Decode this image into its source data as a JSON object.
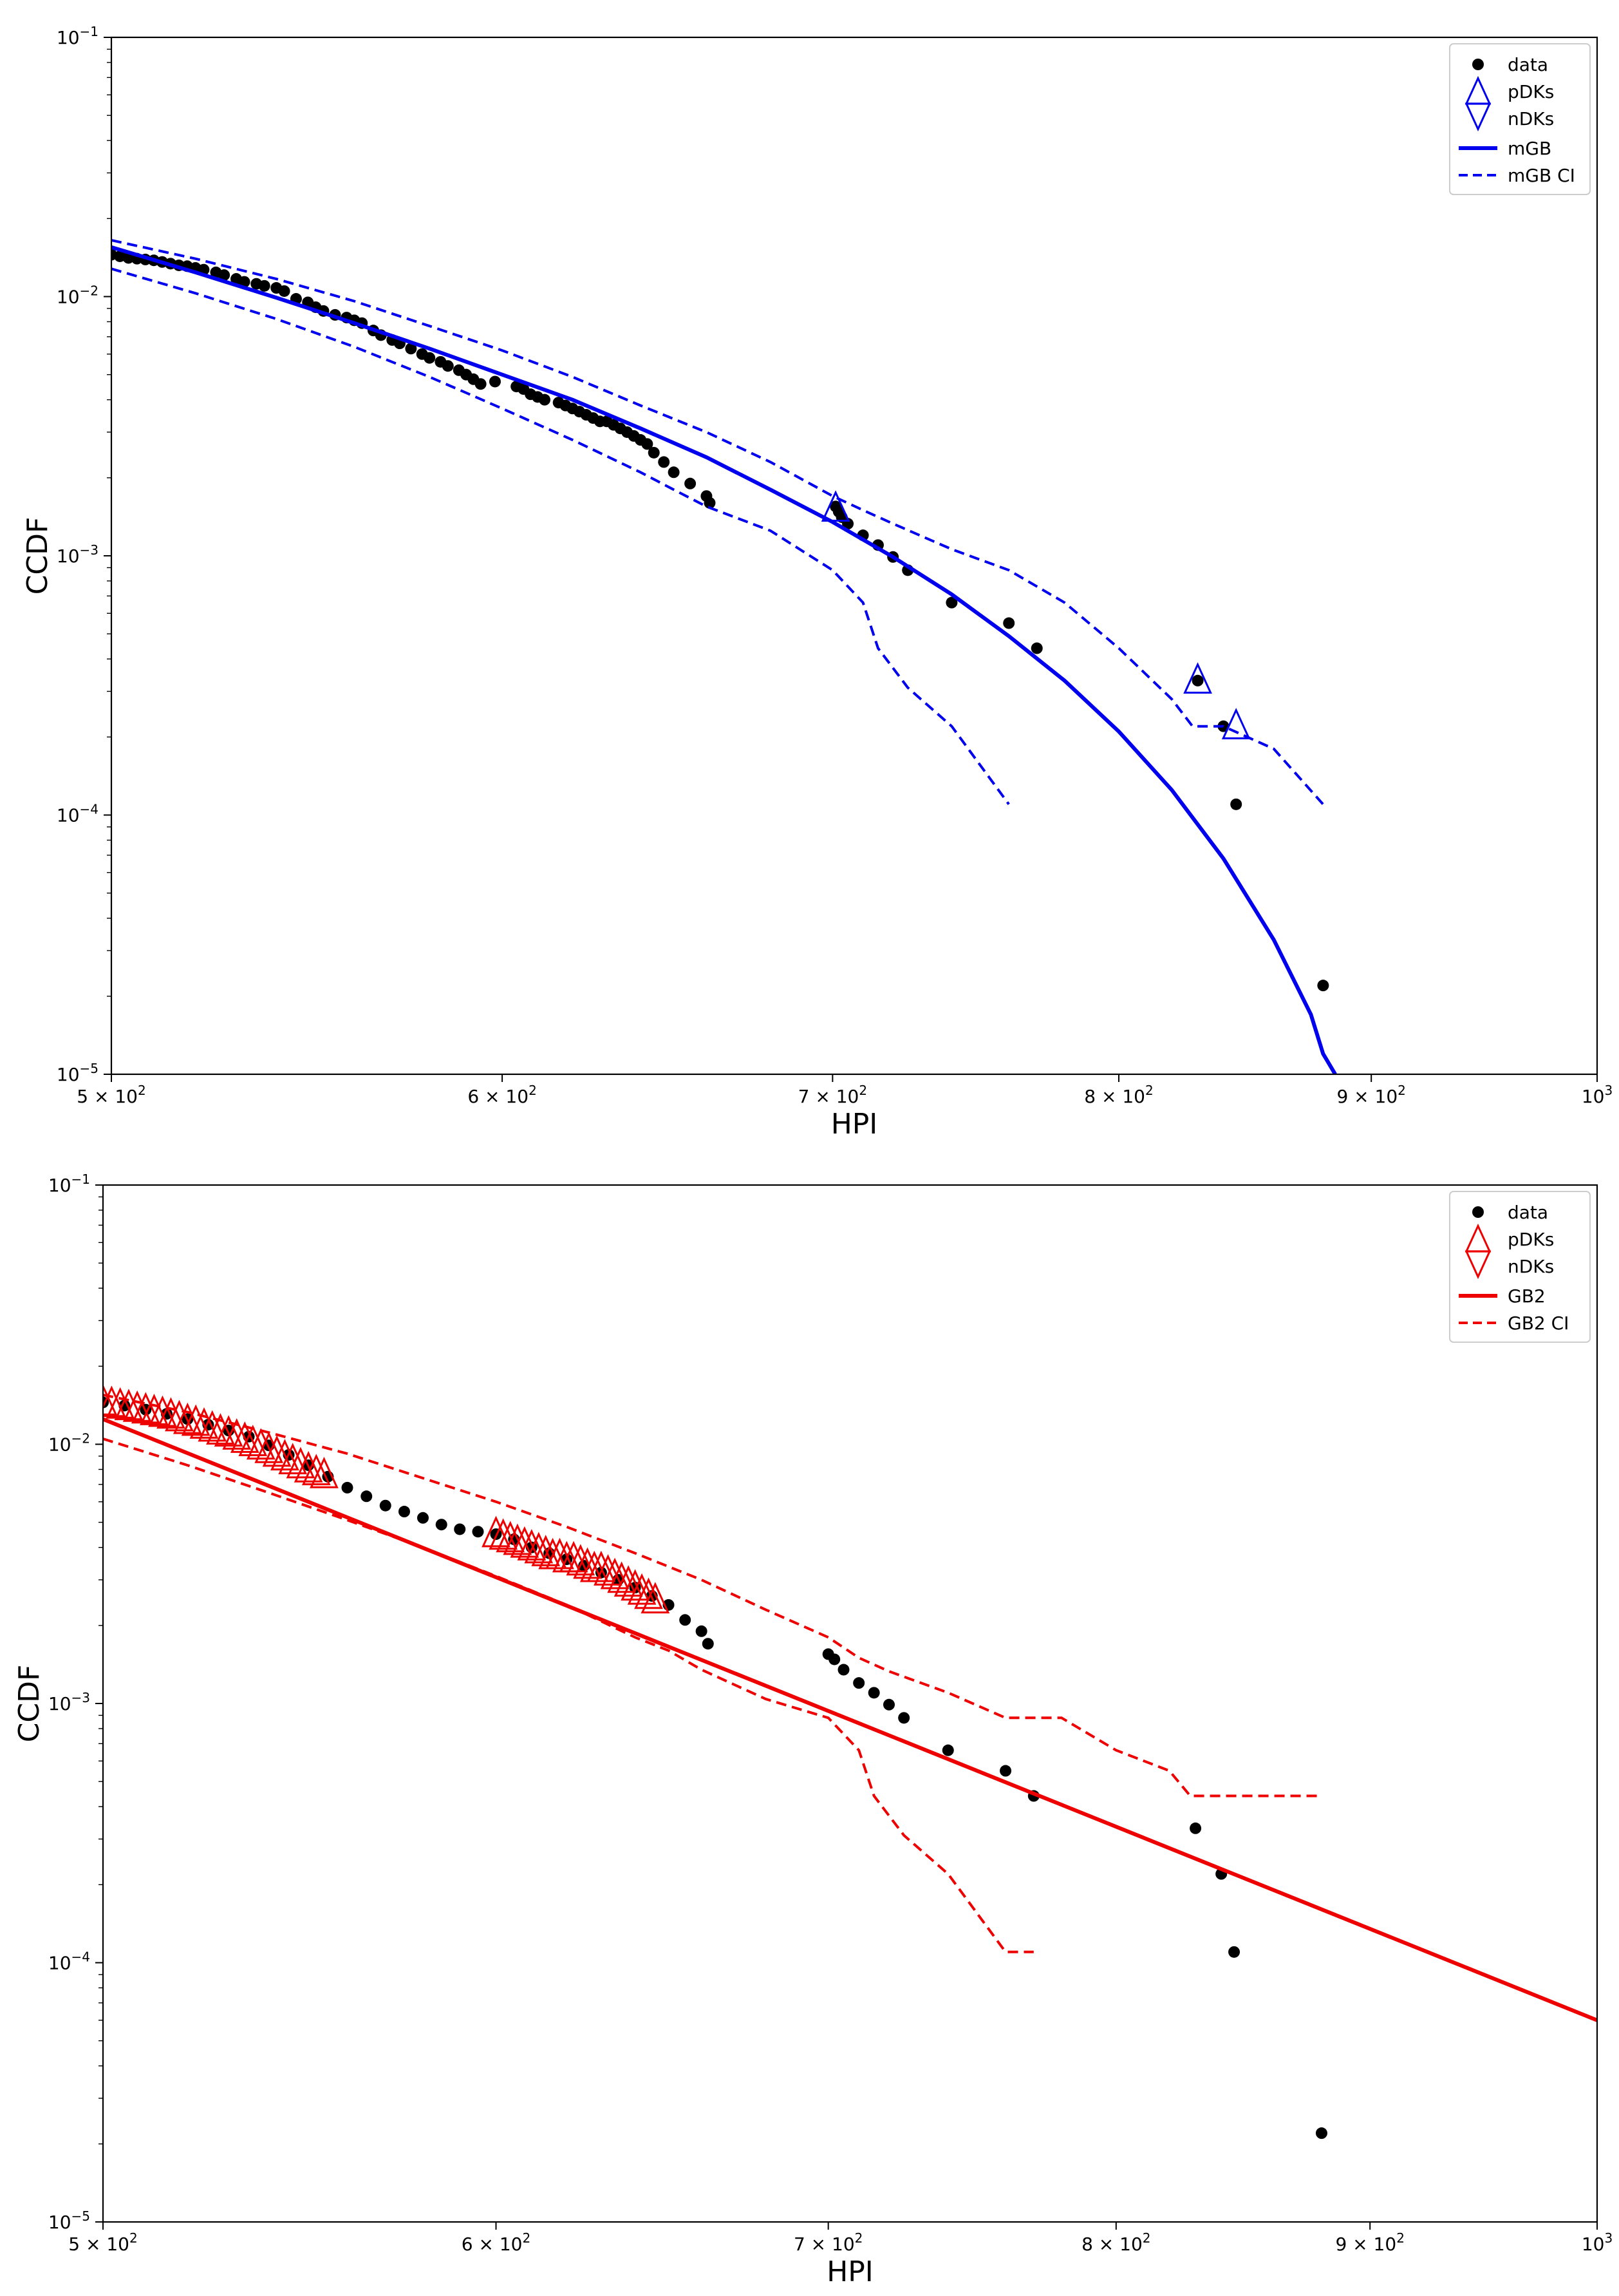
{
  "chart_data": [
    {
      "type": "scatter",
      "title": "",
      "xlabel": "HPI",
      "ylabel": "CCDF",
      "xscale": "log",
      "yscale": "log",
      "xlim": [
        500,
        1000
      ],
      "ylim": [
        1e-05,
        0.1
      ],
      "xticks": [
        {
          "value": 500,
          "label": "5 × 10",
          "exp": "2"
        },
        {
          "value": 600,
          "label": "6 × 10",
          "exp": "2"
        },
        {
          "value": 700,
          "label": "7 × 10",
          "exp": "2"
        },
        {
          "value": 800,
          "label": "8 × 10",
          "exp": "2"
        },
        {
          "value": 900,
          "label": "9 × 10",
          "exp": "2"
        },
        {
          "value": 1000,
          "label": "10",
          "exp": "3"
        }
      ],
      "yticks": [
        {
          "value": 1e-05,
          "label": "10",
          "exp": "−5"
        },
        {
          "value": 0.0001,
          "label": "10",
          "exp": "−4"
        },
        {
          "value": 0.001,
          "label": "10",
          "exp": "−3"
        },
        {
          "value": 0.01,
          "label": "10",
          "exp": "−2"
        },
        {
          "value": 0.1,
          "label": "10",
          "exp": "−1"
        }
      ],
      "legend": {
        "position": "top-right",
        "entries": [
          {
            "label": "data",
            "kind": "dot",
            "color": "#000000"
          },
          {
            "label": "pDKs",
            "kind": "triangle-up",
            "color": "#0000ee"
          },
          {
            "label": "nDKs",
            "kind": "triangle-down",
            "color": "#0000ee"
          },
          {
            "label": "mGB",
            "kind": "line",
            "color": "#0000ee"
          },
          {
            "label": "mGB CI",
            "kind": "dash",
            "color": "#0000ee"
          }
        ]
      },
      "series": [
        {
          "name": "data",
          "kind": "dot",
          "color": "#000000",
          "x": [
            500,
            502,
            504,
            506,
            508,
            510,
            512,
            514,
            516,
            518,
            520,
            522,
            525,
            527,
            530,
            532,
            535,
            537,
            540,
            542,
            545,
            548,
            550,
            552,
            555,
            558,
            560,
            562,
            565,
            567,
            570,
            572,
            575,
            578,
            580,
            583,
            585,
            588,
            590,
            592,
            594,
            598,
            604,
            606,
            608,
            610,
            612,
            616,
            618,
            620,
            622,
            624,
            626,
            628,
            630,
            632,
            634,
            636,
            638,
            640,
            642,
            644,
            647,
            650,
            655,
            660,
            661,
            701,
            702,
            703,
            705,
            710,
            715,
            720,
            725,
            740,
            760,
            770,
            830,
            840,
            845,
            880
          ],
          "y": [
            0.0145,
            0.0143,
            0.0141,
            0.014,
            0.0139,
            0.0138,
            0.0136,
            0.0134,
            0.0132,
            0.0131,
            0.0129,
            0.0127,
            0.0124,
            0.0121,
            0.0117,
            0.0114,
            0.0112,
            0.011,
            0.0108,
            0.0105,
            0.0098,
            0.0095,
            0.0091,
            0.0088,
            0.0085,
            0.0083,
            0.0081,
            0.0079,
            0.0074,
            0.0071,
            0.0068,
            0.0066,
            0.0063,
            0.006,
            0.0058,
            0.0056,
            0.0054,
            0.0052,
            0.005,
            0.0048,
            0.0046,
            0.0047,
            0.0045,
            0.0044,
            0.0042,
            0.0041,
            0.004,
            0.0039,
            0.0038,
            0.0037,
            0.0036,
            0.0035,
            0.0034,
            0.0033,
            0.0033,
            0.0032,
            0.0031,
            0.003,
            0.0029,
            0.0028,
            0.0027,
            0.0025,
            0.0023,
            0.0021,
            0.0019,
            0.0017,
            0.0016,
            0.00155,
            0.00148,
            0.00141,
            0.00133,
            0.0012,
            0.0011,
            0.00099,
            0.00088,
            0.00066,
            0.00055,
            0.00044,
            0.00033,
            0.00022,
            0.00011,
            2.2e-05
          ]
        },
        {
          "name": "pDKs",
          "kind": "triangle-up",
          "color": "#0000ee",
          "x": [
            701,
            830,
            845
          ],
          "y": [
            0.00152,
            0.00033,
            0.00022
          ]
        },
        {
          "name": "mGB",
          "kind": "line",
          "color": "#0000ee",
          "x": [
            500,
            520,
            540,
            560,
            580,
            600,
            620,
            640,
            660,
            680,
            700,
            720,
            740,
            760,
            780,
            800,
            820,
            840,
            860,
            875,
            880,
            885
          ],
          "y": [
            0.0155,
            0.0124,
            0.0099,
            0.0079,
            0.0063,
            0.005,
            0.004,
            0.0031,
            0.0024,
            0.0018,
            0.00135,
            0.00099,
            0.00071,
            0.00049,
            0.00033,
            0.00021,
            0.000125,
            6.8e-05,
            3.3e-05,
            1.7e-05,
            1.2e-05,
            1e-05
          ]
        },
        {
          "name": "mGB CI upper",
          "kind": "dash",
          "color": "#0000ee",
          "x": [
            500,
            520,
            540,
            560,
            580,
            600,
            620,
            640,
            660,
            680,
            700,
            710,
            720,
            740,
            760,
            780,
            800,
            820,
            828,
            840,
            860,
            880
          ],
          "y": [
            0.0165,
            0.014,
            0.0117,
            0.0096,
            0.0077,
            0.0062,
            0.0049,
            0.0038,
            0.003,
            0.0023,
            0.0017,
            0.0015,
            0.00133,
            0.00106,
            0.00088,
            0.00066,
            0.00044,
            0.00028,
            0.00022,
            0.00022,
            0.00018,
            0.00011
          ]
        },
        {
          "name": "mGB CI lower",
          "kind": "dash",
          "color": "#0000ee",
          "x": [
            500,
            520,
            540,
            560,
            580,
            600,
            620,
            640,
            650,
            660,
            680,
            700,
            710,
            715,
            725,
            740,
            760
          ],
          "y": [
            0.0128,
            0.0103,
            0.0082,
            0.0064,
            0.0049,
            0.0037,
            0.0028,
            0.0021,
            0.0018,
            0.00155,
            0.00125,
            0.00088,
            0.00066,
            0.00044,
            0.00031,
            0.00022,
            0.00011
          ]
        }
      ]
    },
    {
      "type": "scatter",
      "title": "",
      "xlabel": "HPI",
      "ylabel": "CCDF",
      "xscale": "log",
      "yscale": "log",
      "xlim": [
        500,
        1000
      ],
      "ylim": [
        1e-05,
        0.1
      ],
      "xticks": [
        {
          "value": 500,
          "label": "5 × 10",
          "exp": "2"
        },
        {
          "value": 600,
          "label": "6 × 10",
          "exp": "2"
        },
        {
          "value": 700,
          "label": "7 × 10",
          "exp": "2"
        },
        {
          "value": 800,
          "label": "8 × 10",
          "exp": "2"
        },
        {
          "value": 900,
          "label": "9 × 10",
          "exp": "2"
        },
        {
          "value": 1000,
          "label": "10",
          "exp": "3"
        }
      ],
      "yticks": [
        {
          "value": 1e-05,
          "label": "10",
          "exp": "−5"
        },
        {
          "value": 0.0001,
          "label": "10",
          "exp": "−4"
        },
        {
          "value": 0.001,
          "label": "10",
          "exp": "−3"
        },
        {
          "value": 0.01,
          "label": "10",
          "exp": "−2"
        },
        {
          "value": 0.1,
          "label": "10",
          "exp": "−1"
        }
      ],
      "legend": {
        "position": "top-right",
        "entries": [
          {
            "label": "data",
            "kind": "dot",
            "color": "#000000"
          },
          {
            "label": "pDKs",
            "kind": "triangle-up",
            "color": "#ee0000"
          },
          {
            "label": "nDKs",
            "kind": "triangle-down",
            "color": "#ee0000"
          },
          {
            "label": "GB2",
            "kind": "line",
            "color": "#ee0000"
          },
          {
            "label": "GB2 CI",
            "kind": "dash",
            "color": "#ee0000"
          }
        ]
      },
      "series": [
        {
          "name": "data",
          "kind": "dot",
          "color": "#000000",
          "x": [
            500,
            505,
            510,
            515,
            520,
            525,
            530,
            535,
            540,
            545,
            550,
            555,
            560,
            565,
            570,
            575,
            580,
            585,
            590,
            595,
            600,
            605,
            610,
            615,
            620,
            625,
            630,
            635,
            640,
            645,
            650,
            655,
            660,
            662,
            700,
            702,
            705,
            710,
            715,
            720,
            725,
            740,
            760,
            770,
            830,
            840,
            845,
            880
          ],
          "y": [
            0.0145,
            0.0141,
            0.0136,
            0.0131,
            0.0125,
            0.0119,
            0.0113,
            0.0107,
            0.0099,
            0.0091,
            0.0083,
            0.0075,
            0.0068,
            0.0063,
            0.0058,
            0.0055,
            0.0052,
            0.0049,
            0.0047,
            0.0046,
            0.0045,
            0.0043,
            0.004,
            0.0038,
            0.0036,
            0.0034,
            0.0032,
            0.003,
            0.0028,
            0.0026,
            0.0024,
            0.0021,
            0.0019,
            0.0017,
            0.00155,
            0.00148,
            0.00135,
            0.0012,
            0.0011,
            0.00099,
            0.00088,
            0.00066,
            0.00055,
            0.00044,
            0.00033,
            0.00022,
            0.00011,
            2.2e-05
          ]
        },
        {
          "name": "pDKs",
          "kind": "triangle-up",
          "color": "#ee0000",
          "x": [
            500,
            502,
            504,
            506,
            508,
            510,
            512,
            514,
            516,
            518,
            520,
            522,
            524,
            526,
            528,
            530,
            532,
            534,
            536,
            538,
            540,
            542,
            544,
            546,
            548,
            550,
            552,
            554,
            600,
            602,
            604,
            606,
            608,
            610,
            612,
            614,
            616,
            618,
            620,
            622,
            624,
            626,
            628,
            630,
            632,
            634,
            636,
            638,
            640,
            642,
            644,
            646
          ],
          "y": [
            0.0145,
            0.0143,
            0.0141,
            0.0139,
            0.0137,
            0.0135,
            0.0133,
            0.0131,
            0.0129,
            0.0126,
            0.0123,
            0.0121,
            0.0118,
            0.0115,
            0.0112,
            0.011,
            0.0107,
            0.0104,
            0.0101,
            0.0098,
            0.0095,
            0.0092,
            0.0089,
            0.0086,
            0.0083,
            0.008,
            0.0078,
            0.0076,
            0.0045,
            0.0044,
            0.0043,
            0.0042,
            0.0041,
            0.004,
            0.0039,
            0.0038,
            0.0037,
            0.0037,
            0.0036,
            0.0036,
            0.0035,
            0.0034,
            0.0033,
            0.0033,
            0.0032,
            0.0031,
            0.003,
            0.0029,
            0.0028,
            0.0027,
            0.0026,
            0.0025
          ]
        },
        {
          "name": "GB2",
          "kind": "line",
          "color": "#ee0000",
          "x": [
            500,
            1000
          ],
          "y": [
            0.0125,
            6e-05
          ]
        },
        {
          "name": "GB2 CI upper",
          "kind": "dash",
          "color": "#ee0000",
          "x": [
            500,
            520,
            540,
            560,
            580,
            600,
            620,
            640,
            660,
            680,
            700,
            710,
            720,
            740,
            760,
            780,
            800,
            820,
            828,
            840,
            860,
            880
          ],
          "y": [
            0.0155,
            0.0133,
            0.0111,
            0.0092,
            0.0074,
            0.006,
            0.0048,
            0.0038,
            0.003,
            0.0023,
            0.0018,
            0.0015,
            0.00133,
            0.0011,
            0.00088,
            0.00088,
            0.00066,
            0.00055,
            0.00044,
            0.00044,
            0.00044,
            0.00044
          ]
        },
        {
          "name": "GB2 CI lower",
          "kind": "dash",
          "color": "#ee0000",
          "x": [
            500,
            520,
            540,
            560,
            580,
            600,
            620,
            640,
            650,
            660,
            680,
            700,
            710,
            715,
            725,
            740,
            760,
            770
          ],
          "y": [
            0.0105,
            0.0083,
            0.0065,
            0.0051,
            0.004,
            0.0031,
            0.0024,
            0.0018,
            0.0016,
            0.00135,
            0.00104,
            0.00088,
            0.00066,
            0.00044,
            0.00031,
            0.00022,
            0.00011,
            0.00011
          ]
        }
      ]
    }
  ]
}
